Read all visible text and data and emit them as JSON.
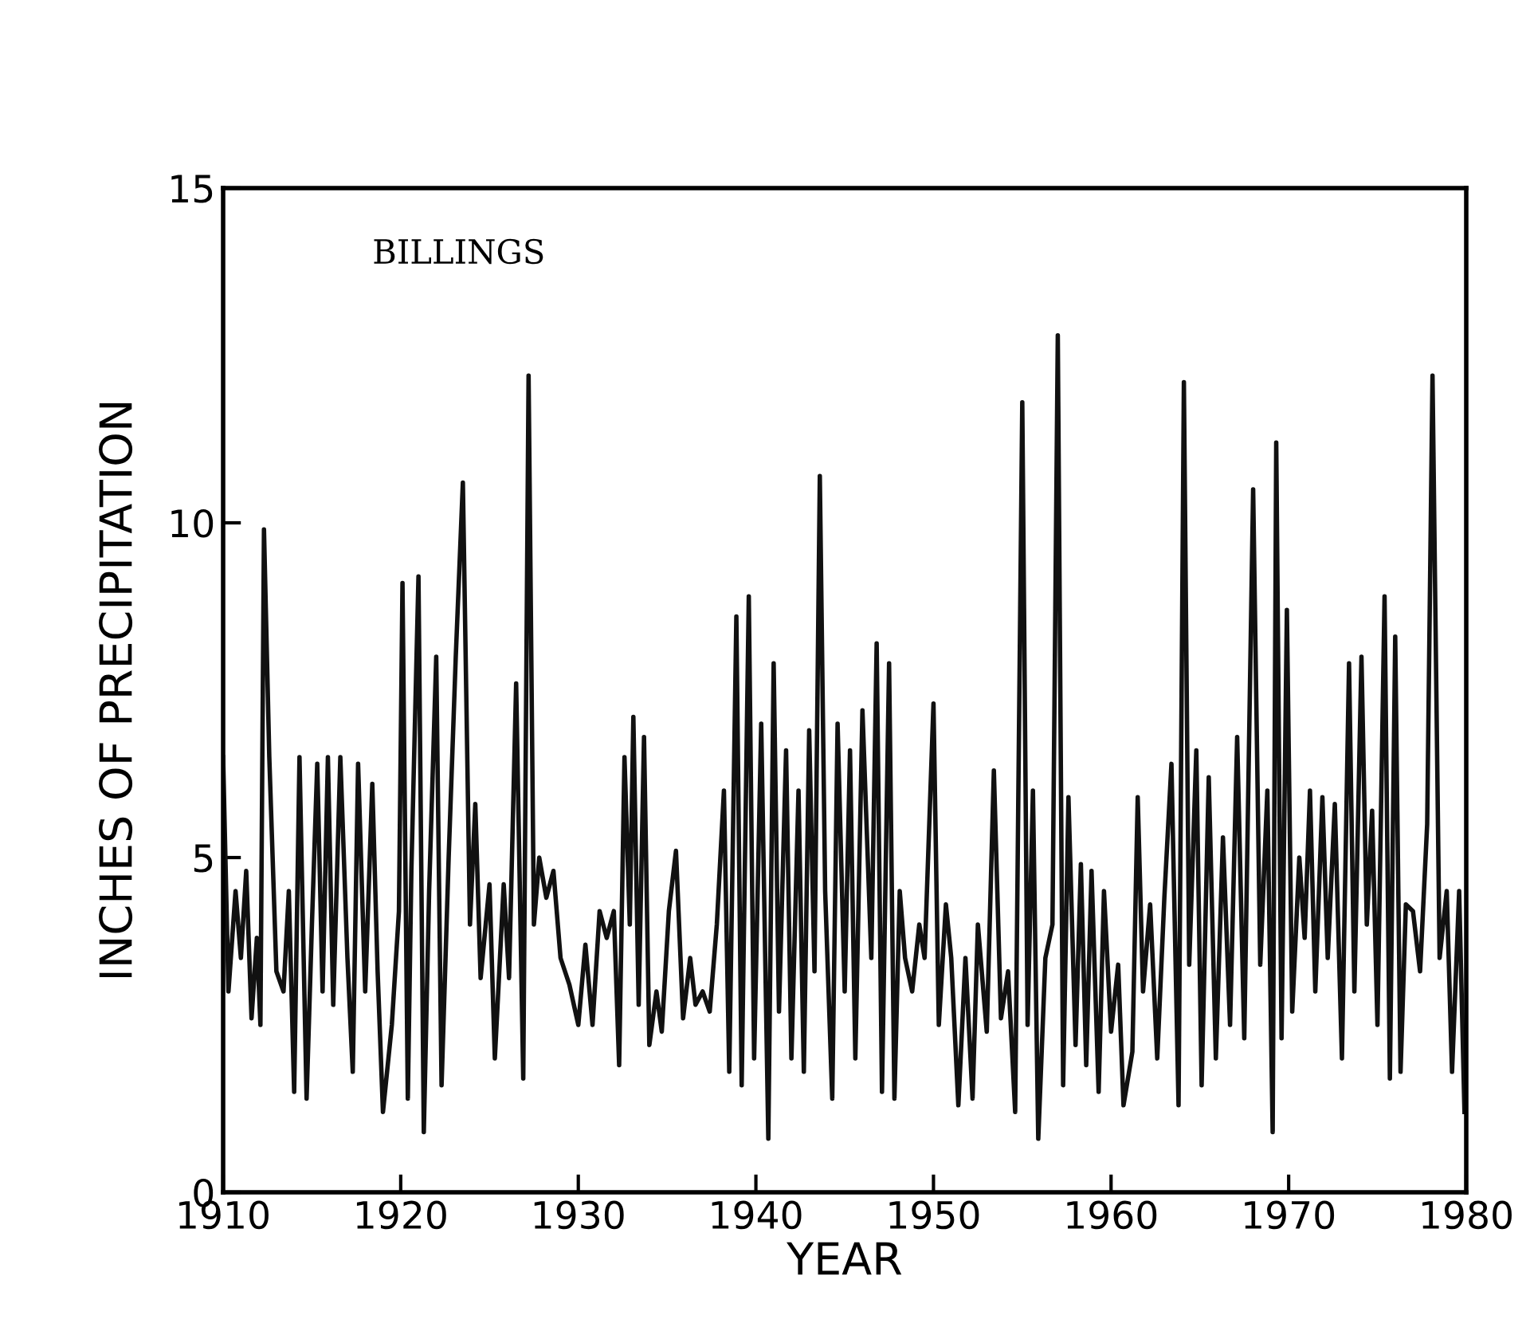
{
  "chart_data": {
    "type": "line",
    "xlabel": "YEAR",
    "ylabel": "INCHES OF PRECIPITATION",
    "annotations": [
      "BILLINGS"
    ],
    "x": [
      1910.0,
      1910.3,
      1910.7,
      1911.0,
      1911.3,
      1911.6,
      1911.9,
      1912.1,
      1912.3,
      1912.6,
      1913.0,
      1913.4,
      1913.7,
      1914.0,
      1914.3,
      1914.7,
      1915.0,
      1915.3,
      1915.6,
      1915.9,
      1916.2,
      1916.6,
      1917.0,
      1917.3,
      1917.6,
      1918.0,
      1918.4,
      1918.7,
      1919.0,
      1919.5,
      1919.9,
      1920.1,
      1920.4,
      1920.6,
      1921.0,
      1921.3,
      1921.6,
      1922.0,
      1922.3,
      1922.7,
      1923.1,
      1923.5,
      1923.9,
      1924.2,
      1924.5,
      1925.0,
      1925.3,
      1925.8,
      1926.1,
      1926.5,
      1926.9,
      1927.2,
      1927.5,
      1927.8,
      1928.2,
      1928.6,
      1929.0,
      1929.5,
      1930.0,
      1930.4,
      1930.8,
      1931.2,
      1931.6,
      1932.0,
      1932.3,
      1932.6,
      1932.9,
      1933.1,
      1933.4,
      1933.7,
      1934.0,
      1934.4,
      1934.7,
      1935.1,
      1935.5,
      1935.9,
      1936.3,
      1936.6,
      1937.0,
      1937.4,
      1937.8,
      1938.2,
      1938.5,
      1938.9,
      1939.2,
      1939.6,
      1939.9,
      1940.3,
      1940.7,
      1941.0,
      1941.3,
      1941.7,
      1942.0,
      1942.4,
      1942.7,
      1943.0,
      1943.3,
      1943.6,
      1943.9,
      1944.3,
      1944.6,
      1945.0,
      1945.3,
      1945.6,
      1946.0,
      1946.5,
      1946.8,
      1947.1,
      1947.5,
      1947.8,
      1948.1,
      1948.4,
      1948.8,
      1949.2,
      1949.5,
      1950.0,
      1950.3,
      1950.7,
      1951.0,
      1951.4,
      1951.8,
      1952.2,
      1952.5,
      1953.0,
      1953.4,
      1953.8,
      1954.2,
      1954.6,
      1955.0,
      1955.3,
      1955.6,
      1955.9,
      1956.3,
      1956.7,
      1957.0,
      1957.3,
      1957.6,
      1958.0,
      1958.3,
      1958.6,
      1958.9,
      1959.3,
      1959.6,
      1960.0,
      1960.4,
      1960.7,
      1961.2,
      1961.5,
      1961.8,
      1962.2,
      1962.6,
      1963.0,
      1963.4,
      1963.8,
      1964.1,
      1964.4,
      1964.8,
      1965.1,
      1965.5,
      1965.9,
      1966.3,
      1966.7,
      1967.1,
      1967.5,
      1968.0,
      1968.4,
      1968.8,
      1969.1,
      1969.3,
      1969.6,
      1969.9,
      1970.2,
      1970.6,
      1970.9,
      1971.2,
      1971.5,
      1971.9,
      1972.2,
      1972.6,
      1973.0,
      1973.4,
      1973.7,
      1974.1,
      1974.4,
      1974.7,
      1975.0,
      1975.4,
      1975.7,
      1976.0,
      1976.3,
      1976.6,
      1977.0,
      1977.4,
      1977.8,
      1978.1,
      1978.5,
      1978.9,
      1979.2,
      1979.6,
      1979.9
    ],
    "series": [
      {
        "color": "#111111",
        "values": [
          6.5,
          3.0,
          4.5,
          3.5,
          4.8,
          2.6,
          3.8,
          2.5,
          9.9,
          6.5,
          3.3,
          3.0,
          4.5,
          1.5,
          6.5,
          1.4,
          4.0,
          6.4,
          3.0,
          6.5,
          2.8,
          6.5,
          3.5,
          1.8,
          6.4,
          3.0,
          6.1,
          3.3,
          1.2,
          2.5,
          4.2,
          9.1,
          1.4,
          4.8,
          9.2,
          0.9,
          4.5,
          8.0,
          1.6,
          5.0,
          8.0,
          10.6,
          4.0,
          5.8,
          3.2,
          4.6,
          2.0,
          4.6,
          3.2,
          7.6,
          1.7,
          12.2,
          4.0,
          5.0,
          4.4,
          4.8,
          3.5,
          3.1,
          2.5,
          3.7,
          2.5,
          4.2,
          3.8,
          4.2,
          1.9,
          6.5,
          4.0,
          7.1,
          2.8,
          6.8,
          2.2,
          3.0,
          2.4,
          4.2,
          5.1,
          2.6,
          3.5,
          2.8,
          3.0,
          2.7,
          4.0,
          6.0,
          1.8,
          8.6,
          1.6,
          8.9,
          2.0,
          7.0,
          0.8,
          7.9,
          2.7,
          6.6,
          2.0,
          6.0,
          1.8,
          6.9,
          3.3,
          10.7,
          4.5,
          1.4,
          7.0,
          3.0,
          6.6,
          2.0,
          7.2,
          3.5,
          8.2,
          1.5,
          7.9,
          1.4,
          4.5,
          3.5,
          3.0,
          4.0,
          3.5,
          7.3,
          2.5,
          4.3,
          3.5,
          1.3,
          3.5,
          1.4,
          4.0,
          2.4,
          6.3,
          2.6,
          3.3,
          1.2,
          11.8,
          2.5,
          6.0,
          0.8,
          3.5,
          4.0,
          12.8,
          1.6,
          5.9,
          2.2,
          4.9,
          1.9,
          4.8,
          1.5,
          4.5,
          2.4,
          3.4,
          1.3,
          2.1,
          5.9,
          3.0,
          4.3,
          2.0,
          4.4,
          6.4,
          1.3,
          12.1,
          3.4,
          6.6,
          1.6,
          6.2,
          2.0,
          5.3,
          2.5,
          6.8,
          2.3,
          10.5,
          3.4,
          6.0,
          0.9,
          11.2,
          2.3,
          8.7,
          2.7,
          5.0,
          3.8,
          6.0,
          3.0,
          5.9,
          3.5,
          5.8,
          2.0,
          7.9,
          3.0,
          8.0,
          4.0,
          5.7,
          2.5,
          8.9,
          1.7,
          8.3,
          1.8,
          4.3,
          4.2,
          3.3,
          5.5,
          12.2,
          3.5,
          4.5,
          1.8,
          4.5,
          1.2
        ]
      }
    ],
    "xlim": [
      1910,
      1980
    ],
    "xticks": [
      1910,
      1920,
      1930,
      1940,
      1950,
      1960,
      1970,
      1980
    ],
    "ylim": [
      0,
      15
    ],
    "yticks": [
      0,
      5,
      10,
      15
    ],
    "grid": false,
    "legend": false,
    "marker": "none",
    "line_style": "solid"
  }
}
